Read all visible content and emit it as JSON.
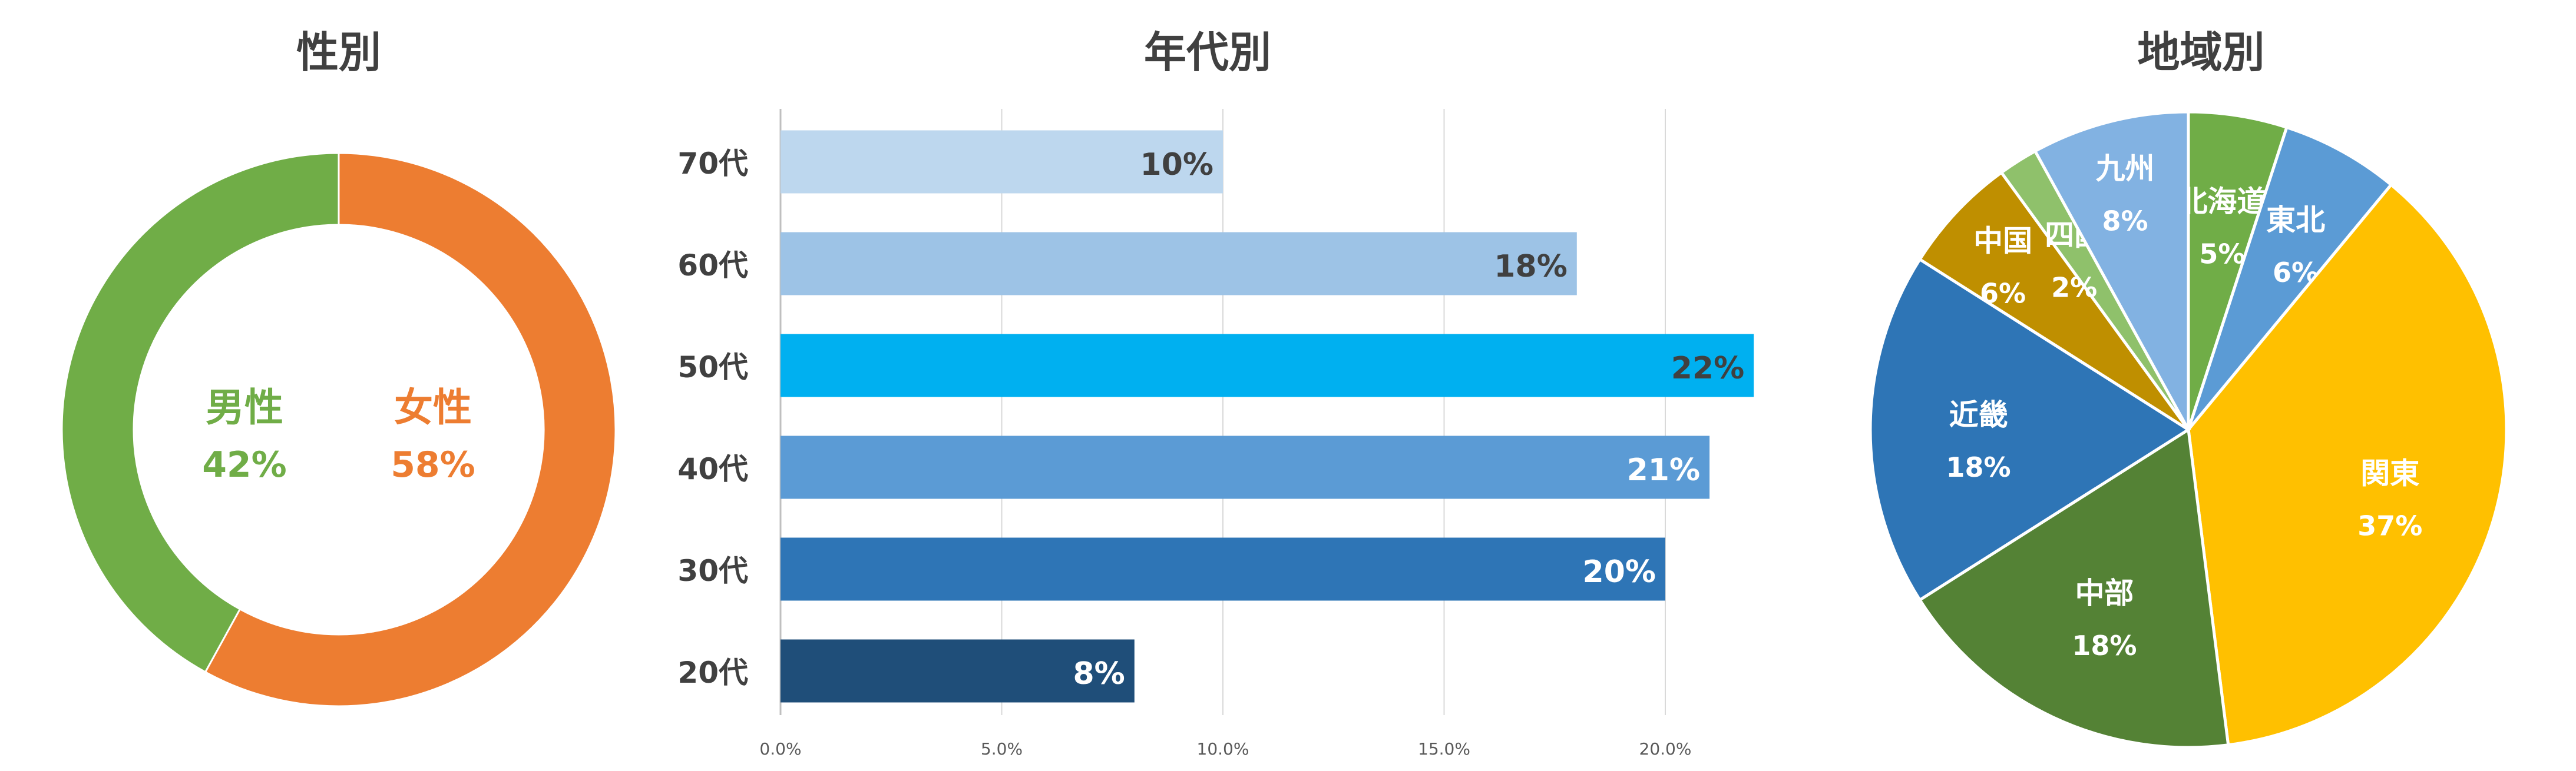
{
  "chart_data": [
    {
      "type": "pie",
      "title": "性別",
      "categories": [
        "女性",
        "男性"
      ],
      "values": [
        58,
        42
      ],
      "value_labels": [
        "58%",
        "42%"
      ],
      "colors": [
        "#ED7D31",
        "#70AD47"
      ],
      "donut": true,
      "legend": "none"
    },
    {
      "type": "bar",
      "orientation": "horizontal",
      "title": "年代別",
      "categories": [
        "70代",
        "60代",
        "50代",
        "40代",
        "30代",
        "20代"
      ],
      "values": [
        10,
        18,
        22,
        21,
        20,
        8
      ],
      "value_labels": [
        "10%",
        "18%",
        "22%",
        "21%",
        "20%",
        "8%"
      ],
      "colors": [
        "#BDD7EE",
        "#9DC3E6",
        "#00B0F0",
        "#5B9BD5",
        "#2E75B6",
        "#1F4E79"
      ],
      "label_colors": [
        "#404040",
        "#404040",
        "#404040",
        "#ffffff",
        "#ffffff",
        "#ffffff"
      ],
      "xlim": [
        0,
        20
      ],
      "xticks": [
        "0.0%",
        "5.0%",
        "10.0%",
        "15.0%",
        "20.0%"
      ],
      "grid": true,
      "legend": "none"
    },
    {
      "type": "pie",
      "title": "地域別",
      "categories": [
        "北海道",
        "東北",
        "関東",
        "中部",
        "近畿",
        "中国",
        "四国",
        "九州"
      ],
      "values": [
        5,
        6,
        37,
        18,
        18,
        6,
        2,
        8
      ],
      "value_labels": [
        "5%",
        "6%",
        "37%",
        "18%",
        "18%",
        "6%",
        "2%",
        "8%"
      ],
      "colors": [
        "#70AD47",
        "#5B9BD5",
        "#FFC000",
        "#548235",
        "#2E75B6",
        "#BF8F00",
        "#8FC16B",
        "#82B2E2"
      ],
      "legend": "none"
    }
  ]
}
